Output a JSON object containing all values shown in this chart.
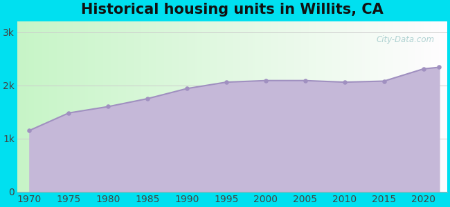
{
  "title": "Historical housing units in Willits, CA",
  "years": [
    1970,
    1975,
    1980,
    1985,
    1990,
    1995,
    2000,
    2005,
    2010,
    2015,
    2020,
    2022
  ],
  "values": [
    1150,
    1480,
    1600,
    1750,
    1940,
    2060,
    2090,
    2090,
    2060,
    2080,
    2310,
    2340
  ],
  "fill_color": "#c5b8d8",
  "line_color": "#a090c0",
  "dot_color": "#a090c0",
  "background_outer": "#00e0f0",
  "ytick_labels": [
    "0",
    "1k",
    "2k",
    "3k"
  ],
  "ytick_values": [
    0,
    1000,
    2000,
    3000
  ],
  "ylim": [
    0,
    3200
  ],
  "xlim": [
    1968.5,
    2023
  ],
  "xtick_values": [
    1970,
    1975,
    1980,
    1985,
    1990,
    1995,
    2000,
    2005,
    2010,
    2015,
    2020
  ],
  "watermark": "City-Data.com",
  "title_fontsize": 15,
  "tick_fontsize": 10,
  "bg_color_topleft": "#c8f5e0",
  "bg_color_topright": "#f0fdf8",
  "bg_color_bottomright": "#f0fdf8",
  "bg_color_bottomleft": "#c8f5e0"
}
